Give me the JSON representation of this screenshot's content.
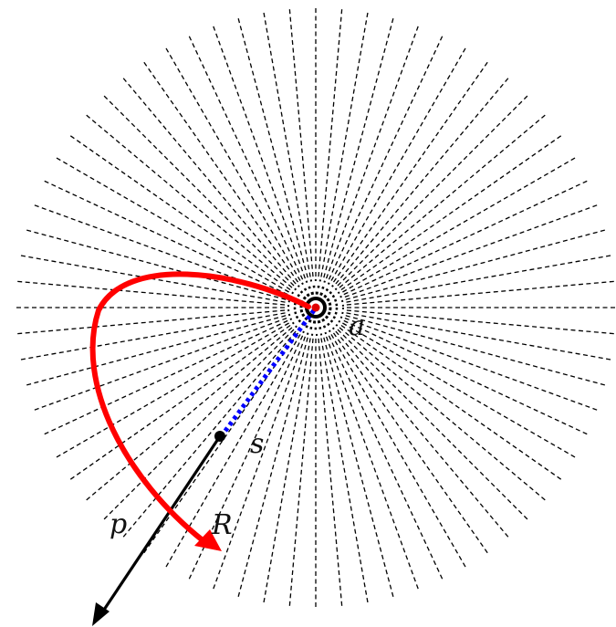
{
  "diagram": {
    "labels": {
      "a": "a",
      "s": "s",
      "p": "p",
      "R": "R"
    },
    "colors": {
      "rays": "#000000",
      "trajectory": "#ff0000",
      "dotted_segment": "#0000ff",
      "arrow": "#000000",
      "background": "#ffffff"
    },
    "ray_count": 72
  }
}
